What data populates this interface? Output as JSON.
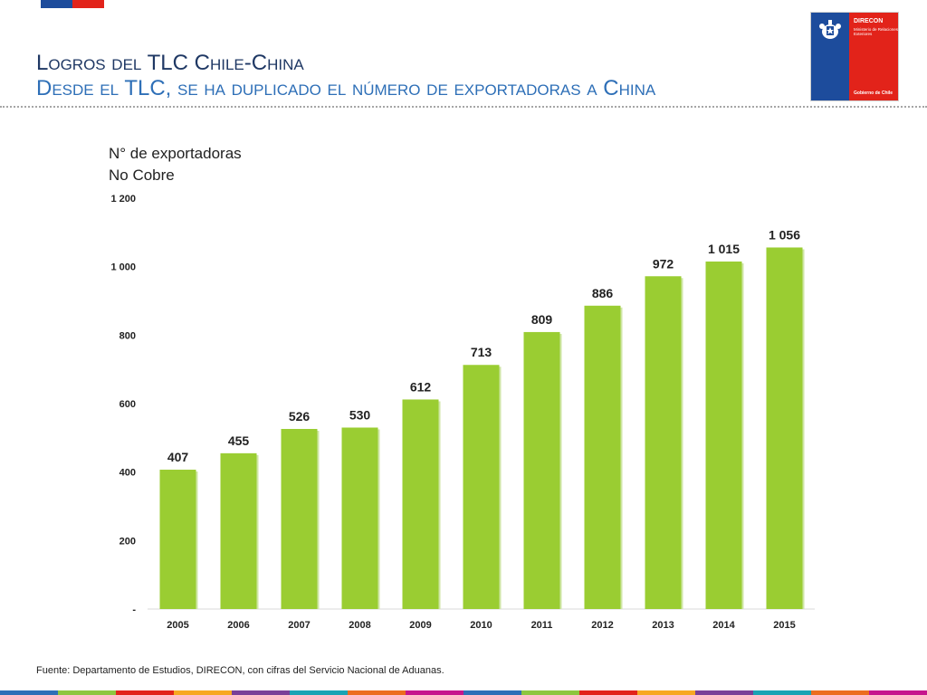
{
  "header": {
    "title_line1": "Logros del TLC Chile-China",
    "title_line2": "Desde el TLC, se ha duplicado el número de exportadoras a China"
  },
  "logo": {
    "org": "DIRECON",
    "subtitle": "Ministerio de Relaciones Exteriores",
    "government": "Gobierno de Chile",
    "colors": {
      "blue": "#1d4c9c",
      "red": "#e2231a"
    }
  },
  "chart_title": {
    "line1": "N° de exportadoras",
    "line2": "No Cobre"
  },
  "chart_data": {
    "type": "bar",
    "categories": [
      "2005",
      "2006",
      "2007",
      "2008",
      "2009",
      "2010",
      "2011",
      "2012",
      "2013",
      "2014",
      "2015"
    ],
    "values": [
      407,
      455,
      526,
      530,
      612,
      713,
      809,
      886,
      972,
      1015,
      1056
    ],
    "value_labels": [
      "407",
      "455",
      "526",
      "530",
      "612",
      "713",
      "809",
      "886",
      "972",
      "1 015",
      "1 056"
    ],
    "ylim": [
      0,
      1200
    ],
    "yticks": [
      0,
      200,
      400,
      600,
      800,
      1000,
      1200
    ],
    "ytick_labels": [
      "-",
      "200",
      "400",
      "600",
      "800",
      "1 000",
      "1 200"
    ],
    "bar_color": "#9acd32",
    "grid": false
  },
  "footnote": "Fuente: Departamento de Estudios, DIRECON, con cifras del Servicio Nacional de Aduanas.",
  "decor": {
    "top_flag_colors": [
      "#1d4c9c",
      "#e2231a"
    ],
    "bottom_strip_colors": [
      "#2e6fb7",
      "#8dc63f",
      "#e2231a",
      "#f7a823",
      "#7a3f98",
      "#1aa3b4",
      "#ec6d1f",
      "#c6168d",
      "#2e6fb7",
      "#8dc63f",
      "#e2231a",
      "#f7a823",
      "#7a3f98",
      "#1aa3b4",
      "#ec6d1f",
      "#c6168d"
    ]
  }
}
